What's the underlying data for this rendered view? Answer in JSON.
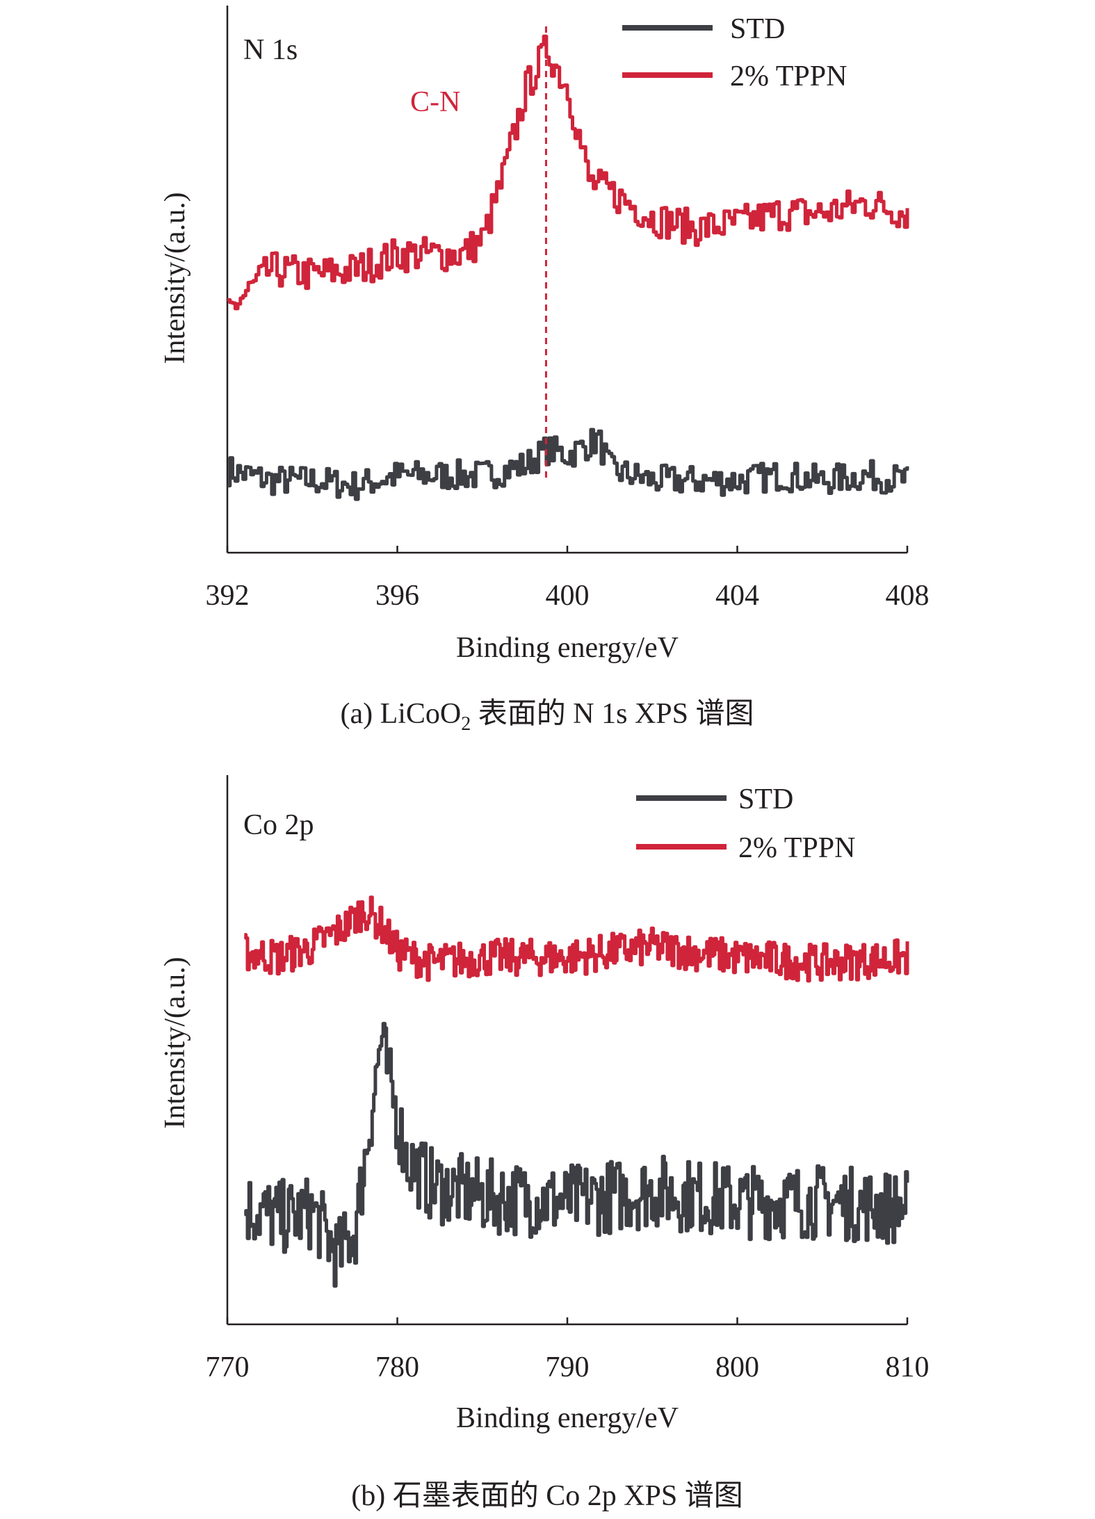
{
  "colors": {
    "std": "#3e3f44",
    "tppn": "#d0243a",
    "axis": "#231f20"
  },
  "chart_data": [
    {
      "type": "line",
      "panel_label": "N 1s",
      "xlabel": "Binding energy/eV",
      "ylabel": "Intensity/(a.u.)",
      "xlim": [
        392,
        408
      ],
      "xticks": [
        "392",
        "396",
        "400",
        "404",
        "408"
      ],
      "ylim": [
        0,
        1
      ],
      "legend": {
        "position": "top-right",
        "entries": [
          "STD",
          "2% TPPN"
        ]
      },
      "annotation": {
        "text": "C-N",
        "x": 399.5
      },
      "series": [
        {
          "name": "STD",
          "color_key": "std",
          "x": [
            392,
            393,
            394,
            395,
            396,
            397,
            398,
            399,
            399.5,
            400,
            400.7,
            401,
            402,
            403,
            404,
            405,
            406,
            407,
            408
          ],
          "y": [
            0.14,
            0.12,
            0.12,
            0.11,
            0.13,
            0.13,
            0.13,
            0.15,
            0.18,
            0.17,
            0.2,
            0.14,
            0.12,
            0.12,
            0.12,
            0.13,
            0.12,
            0.13,
            0.12
          ]
        },
        {
          "name": "2% TPPN",
          "color_key": "tppn",
          "x": [
            392,
            393,
            394,
            395,
            396,
            397,
            397.5,
            398,
            398.5,
            399,
            399.5,
            400,
            400.5,
            401,
            402,
            403,
            404,
            405,
            406,
            407,
            408
          ],
          "y": [
            0.45,
            0.53,
            0.52,
            0.53,
            0.56,
            0.56,
            0.56,
            0.59,
            0.72,
            0.88,
            0.96,
            0.88,
            0.7,
            0.68,
            0.63,
            0.61,
            0.62,
            0.64,
            0.64,
            0.66,
            0.64
          ]
        }
      ],
      "caption": {
        "prefix": "(a) LiCoO",
        "subscript": "2",
        "suffix": " 表面的 N 1s XPS 谱图"
      }
    },
    {
      "type": "line",
      "panel_label": "Co 2p",
      "xlabel": "Binding energy/eV",
      "ylabel": "Intensity/(a.u.)",
      "xlim": [
        770,
        810
      ],
      "xticks": [
        "770",
        "780",
        "790",
        "800",
        "810"
      ],
      "ylim": [
        0,
        1
      ],
      "legend": {
        "position": "top-right",
        "entries": [
          "STD",
          "2% TPPN"
        ]
      },
      "series": [
        {
          "name": "STD",
          "color_key": "std",
          "x": [
            771,
            773,
            775,
            776.5,
            777.5,
            778.5,
            779,
            779.5,
            780.5,
            782,
            785,
            790,
            795,
            800,
            805,
            809,
            810
          ],
          "y": [
            0.21,
            0.19,
            0.2,
            0.12,
            0.17,
            0.4,
            0.52,
            0.44,
            0.3,
            0.25,
            0.23,
            0.22,
            0.24,
            0.22,
            0.22,
            0.21,
            0.21
          ]
        },
        {
          "name": "2% TPPN",
          "color_key": "tppn",
          "x": [
            771,
            773,
            775,
            777,
            778,
            779,
            780,
            782,
            785,
            790,
            795,
            800,
            805,
            810
          ],
          "y": [
            0.68,
            0.67,
            0.69,
            0.73,
            0.76,
            0.73,
            0.68,
            0.66,
            0.67,
            0.67,
            0.69,
            0.67,
            0.66,
            0.67
          ]
        }
      ],
      "caption": {
        "text": "(b) 石墨表面的 Co 2p XPS 谱图"
      }
    }
  ]
}
